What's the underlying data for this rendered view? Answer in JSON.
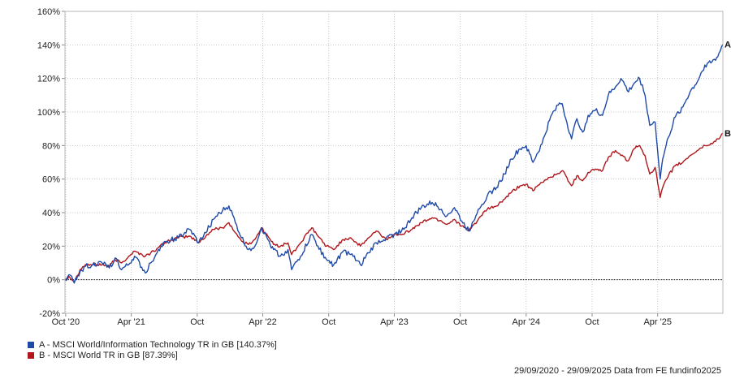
{
  "chart_data": {
    "type": "line",
    "xlim": [
      "2020-09-29",
      "2025-09-29"
    ],
    "ylim": [
      -20,
      160
    ],
    "y_ticks": [
      -20,
      0,
      20,
      40,
      60,
      80,
      100,
      120,
      140,
      160
    ],
    "y_tick_labels": [
      "-20%",
      "0%",
      "20%",
      "40%",
      "60%",
      "80%",
      "100%",
      "120%",
      "140%",
      "160%"
    ],
    "x_ticks": [
      {
        "date": "2020-10-01",
        "label": "Oct '20"
      },
      {
        "date": "2021-04-01",
        "label": "Apr '21"
      },
      {
        "date": "2021-10-01",
        "label": "Oct"
      },
      {
        "date": "2022-04-01",
        "label": "Apr '22"
      },
      {
        "date": "2022-10-01",
        "label": "Oct"
      },
      {
        "date": "2023-04-01",
        "label": "Apr '23"
      },
      {
        "date": "2023-10-01",
        "label": "Oct"
      },
      {
        "date": "2024-04-01",
        "label": "Apr '24"
      },
      {
        "date": "2024-10-01",
        "label": "Oct"
      },
      {
        "date": "2025-04-01",
        "label": "Apr '25"
      }
    ],
    "grid": true,
    "series": [
      {
        "name": "A - MSCI World/Information Technology TR in GB [140.37%]",
        "end_label": "A",
        "color": "#1f4aa8",
        "points": [
          [
            "2020-09-29",
            0
          ],
          [
            "2020-10-10",
            3
          ],
          [
            "2020-10-25",
            -2
          ],
          [
            "2020-11-10",
            5
          ],
          [
            "2020-11-25",
            8
          ],
          [
            "2020-12-15",
            9
          ],
          [
            "2021-01-10",
            10
          ],
          [
            "2021-01-30",
            7
          ],
          [
            "2021-02-15",
            13
          ],
          [
            "2021-03-05",
            6
          ],
          [
            "2021-03-25",
            9
          ],
          [
            "2021-04-10",
            14
          ],
          [
            "2021-05-10",
            4
          ],
          [
            "2021-05-25",
            10
          ],
          [
            "2021-06-15",
            18
          ],
          [
            "2021-07-10",
            23
          ],
          [
            "2021-08-10",
            25
          ],
          [
            "2021-09-10",
            30
          ],
          [
            "2021-10-05",
            22
          ],
          [
            "2021-10-25",
            28
          ],
          [
            "2021-11-15",
            36
          ],
          [
            "2021-12-10",
            41
          ],
          [
            "2021-12-28",
            44
          ],
          [
            "2022-01-15",
            34
          ],
          [
            "2022-02-01",
            25
          ],
          [
            "2022-02-20",
            18
          ],
          [
            "2022-03-10",
            20
          ],
          [
            "2022-03-28",
            31
          ],
          [
            "2022-04-15",
            24
          ],
          [
            "2022-05-01",
            18
          ],
          [
            "2022-05-20",
            14
          ],
          [
            "2022-06-10",
            18
          ],
          [
            "2022-06-20",
            6
          ],
          [
            "2022-07-15",
            14
          ],
          [
            "2022-08-15",
            27
          ],
          [
            "2022-09-01",
            20
          ],
          [
            "2022-09-25",
            12
          ],
          [
            "2022-10-15",
            9
          ],
          [
            "2022-11-10",
            17
          ],
          [
            "2022-12-01",
            15
          ],
          [
            "2022-12-28",
            9
          ],
          [
            "2023-01-20",
            16
          ],
          [
            "2023-02-10",
            22
          ],
          [
            "2023-03-10",
            25
          ],
          [
            "2023-04-01",
            27
          ],
          [
            "2023-05-01",
            31
          ],
          [
            "2023-05-20",
            37
          ],
          [
            "2023-06-15",
            43
          ],
          [
            "2023-07-15",
            46
          ],
          [
            "2023-08-10",
            42
          ],
          [
            "2023-08-25",
            38
          ],
          [
            "2023-09-15",
            43
          ],
          [
            "2023-10-05",
            35
          ],
          [
            "2023-10-25",
            29
          ],
          [
            "2023-11-20",
            42
          ],
          [
            "2023-12-15",
            50
          ],
          [
            "2024-01-10",
            55
          ],
          [
            "2024-02-01",
            63
          ],
          [
            "2024-02-20",
            72
          ],
          [
            "2024-03-15",
            78
          ],
          [
            "2024-04-01",
            80
          ],
          [
            "2024-04-20",
            70
          ],
          [
            "2024-05-15",
            81
          ],
          [
            "2024-06-05",
            95
          ],
          [
            "2024-06-25",
            104
          ],
          [
            "2024-07-10",
            105
          ],
          [
            "2024-07-20",
            96
          ],
          [
            "2024-08-05",
            84
          ],
          [
            "2024-08-20",
            96
          ],
          [
            "2024-09-05",
            88
          ],
          [
            "2024-09-20",
            98
          ],
          [
            "2024-10-10",
            101
          ],
          [
            "2024-10-30",
            98
          ],
          [
            "2024-11-15",
            110
          ],
          [
            "2024-12-05",
            115
          ],
          [
            "2024-12-20",
            120
          ],
          [
            "2025-01-10",
            112
          ],
          [
            "2025-01-25",
            117
          ],
          [
            "2025-02-10",
            120
          ],
          [
            "2025-02-25",
            110
          ],
          [
            "2025-03-10",
            92
          ],
          [
            "2025-03-25",
            94
          ],
          [
            "2025-04-08",
            60
          ],
          [
            "2025-04-15",
            72
          ],
          [
            "2025-05-01",
            85
          ],
          [
            "2025-05-20",
            97
          ],
          [
            "2025-06-10",
            103
          ],
          [
            "2025-06-30",
            112
          ],
          [
            "2025-07-20",
            118
          ],
          [
            "2025-08-10",
            128
          ],
          [
            "2025-08-30",
            130
          ],
          [
            "2025-09-15",
            133
          ],
          [
            "2025-09-29",
            140.37
          ]
        ]
      },
      {
        "name": "B - MSCI World TR in GB [87.39%]",
        "end_label": "B",
        "color": "#b0161c",
        "points": [
          [
            "2020-09-29",
            0
          ],
          [
            "2020-10-10",
            2
          ],
          [
            "2020-10-25",
            -1
          ],
          [
            "2020-11-10",
            6
          ],
          [
            "2020-11-25",
            9
          ],
          [
            "2020-12-15",
            9
          ],
          [
            "2021-01-10",
            9
          ],
          [
            "2021-01-30",
            8
          ],
          [
            "2021-02-15",
            12
          ],
          [
            "2021-03-05",
            10
          ],
          [
            "2021-03-25",
            14
          ],
          [
            "2021-04-10",
            17
          ],
          [
            "2021-05-10",
            14
          ],
          [
            "2021-05-25",
            16
          ],
          [
            "2021-06-15",
            19
          ],
          [
            "2021-07-10",
            23
          ],
          [
            "2021-08-10",
            25
          ],
          [
            "2021-09-10",
            26
          ],
          [
            "2021-10-05",
            22
          ],
          [
            "2021-10-25",
            26
          ],
          [
            "2021-11-15",
            30
          ],
          [
            "2021-12-10",
            31
          ],
          [
            "2021-12-28",
            34
          ],
          [
            "2022-01-15",
            28
          ],
          [
            "2022-02-01",
            23
          ],
          [
            "2022-02-20",
            21
          ],
          [
            "2022-03-10",
            24
          ],
          [
            "2022-03-28",
            31
          ],
          [
            "2022-04-15",
            26
          ],
          [
            "2022-05-01",
            21
          ],
          [
            "2022-05-20",
            20
          ],
          [
            "2022-06-10",
            22
          ],
          [
            "2022-06-20",
            15
          ],
          [
            "2022-07-15",
            22
          ],
          [
            "2022-08-15",
            31
          ],
          [
            "2022-09-01",
            26
          ],
          [
            "2022-09-25",
            20
          ],
          [
            "2022-10-15",
            18
          ],
          [
            "2022-11-10",
            24
          ],
          [
            "2022-12-01",
            25
          ],
          [
            "2022-12-28",
            20
          ],
          [
            "2023-01-20",
            25
          ],
          [
            "2023-02-10",
            29
          ],
          [
            "2023-03-10",
            24
          ],
          [
            "2023-04-01",
            27
          ],
          [
            "2023-05-01",
            28
          ],
          [
            "2023-05-20",
            30
          ],
          [
            "2023-06-15",
            34
          ],
          [
            "2023-07-15",
            37
          ],
          [
            "2023-08-10",
            35
          ],
          [
            "2023-08-25",
            33
          ],
          [
            "2023-09-15",
            36
          ],
          [
            "2023-10-05",
            32
          ],
          [
            "2023-10-25",
            29
          ],
          [
            "2023-11-20",
            36
          ],
          [
            "2023-12-15",
            42
          ],
          [
            "2024-01-10",
            44
          ],
          [
            "2024-02-01",
            48
          ],
          [
            "2024-02-20",
            52
          ],
          [
            "2024-03-15",
            56
          ],
          [
            "2024-04-01",
            57
          ],
          [
            "2024-04-20",
            53
          ],
          [
            "2024-05-15",
            58
          ],
          [
            "2024-06-05",
            61
          ],
          [
            "2024-06-25",
            63
          ],
          [
            "2024-07-10",
            65
          ],
          [
            "2024-07-20",
            62
          ],
          [
            "2024-08-05",
            56
          ],
          [
            "2024-08-20",
            62
          ],
          [
            "2024-09-05",
            59
          ],
          [
            "2024-09-20",
            64
          ],
          [
            "2024-10-10",
            66
          ],
          [
            "2024-10-30",
            65
          ],
          [
            "2024-11-15",
            73
          ],
          [
            "2024-12-05",
            77
          ],
          [
            "2024-12-20",
            74
          ],
          [
            "2025-01-10",
            71
          ],
          [
            "2025-01-25",
            78
          ],
          [
            "2025-02-10",
            80
          ],
          [
            "2025-02-25",
            74
          ],
          [
            "2025-03-10",
            63
          ],
          [
            "2025-03-25",
            67
          ],
          [
            "2025-04-08",
            49
          ],
          [
            "2025-04-15",
            55
          ],
          [
            "2025-05-01",
            62
          ],
          [
            "2025-05-20",
            68
          ],
          [
            "2025-06-10",
            70
          ],
          [
            "2025-06-30",
            74
          ],
          [
            "2025-07-20",
            77
          ],
          [
            "2025-08-10",
            80
          ],
          [
            "2025-08-30",
            81
          ],
          [
            "2025-09-15",
            84
          ],
          [
            "2025-09-29",
            87.39
          ]
        ]
      }
    ]
  },
  "legend": [
    {
      "label": "A - MSCI World/Information Technology TR in GB [140.37%]",
      "color": "#1f4aa8"
    },
    {
      "label": "B - MSCI World TR in GB [87.39%]",
      "color": "#b0161c"
    }
  ],
  "footer": "29/09/2020 - 29/09/2025 Data from FE fundinfo2025"
}
